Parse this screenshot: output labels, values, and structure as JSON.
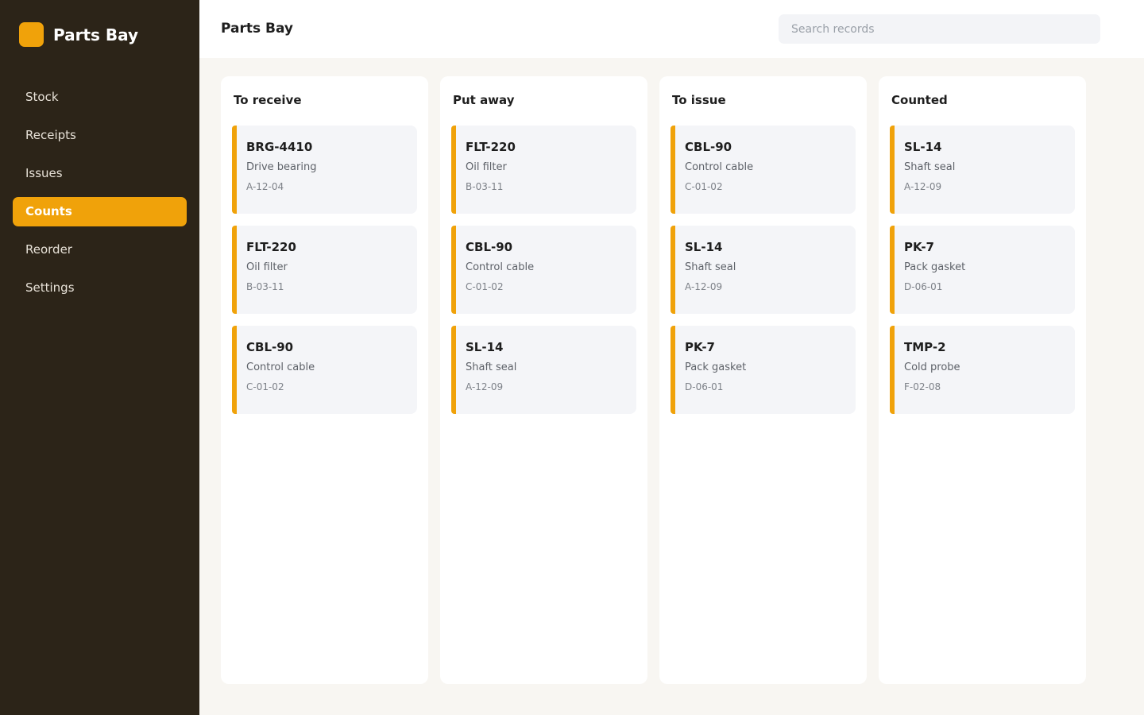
{
  "sidebar": {
    "brand": "Parts Bay",
    "nav": [
      "Stock",
      "Receipts",
      "Issues",
      "Counts",
      "Reorder",
      "Settings"
    ],
    "active": 3
  },
  "header": {
    "title": "Parts Bay",
    "search_placeholder": "Search records"
  },
  "board": {
    "columns": [
      {
        "title": "To receive",
        "cards": [
          {
            "code": "BRG-4410",
            "name": "Drive bearing",
            "location": "A-12-04"
          },
          {
            "code": "FLT-220",
            "name": "Oil filter",
            "location": "B-03-11"
          },
          {
            "code": "CBL-90",
            "name": "Control cable",
            "location": "C-01-02"
          }
        ]
      },
      {
        "title": "Put away",
        "cards": [
          {
            "code": "FLT-220",
            "name": "Oil filter",
            "location": "B-03-11"
          },
          {
            "code": "CBL-90",
            "name": "Control cable",
            "location": "C-01-02"
          },
          {
            "code": "SL-14",
            "name": "Shaft seal",
            "location": "A-12-09"
          }
        ]
      },
      {
        "title": "To issue",
        "cards": [
          {
            "code": "CBL-90",
            "name": "Control cable",
            "location": "C-01-02"
          },
          {
            "code": "SL-14",
            "name": "Shaft seal",
            "location": "A-12-09"
          },
          {
            "code": "PK-7",
            "name": "Pack gasket",
            "location": "D-06-01"
          }
        ]
      },
      {
        "title": "Counted",
        "cards": [
          {
            "code": "SL-14",
            "name": "Shaft seal",
            "location": "A-12-09"
          },
          {
            "code": "PK-7",
            "name": "Pack gasket",
            "location": "D-06-01"
          },
          {
            "code": "TMP-2",
            "name": "Cold probe",
            "location": "F-02-08"
          }
        ]
      }
    ]
  }
}
